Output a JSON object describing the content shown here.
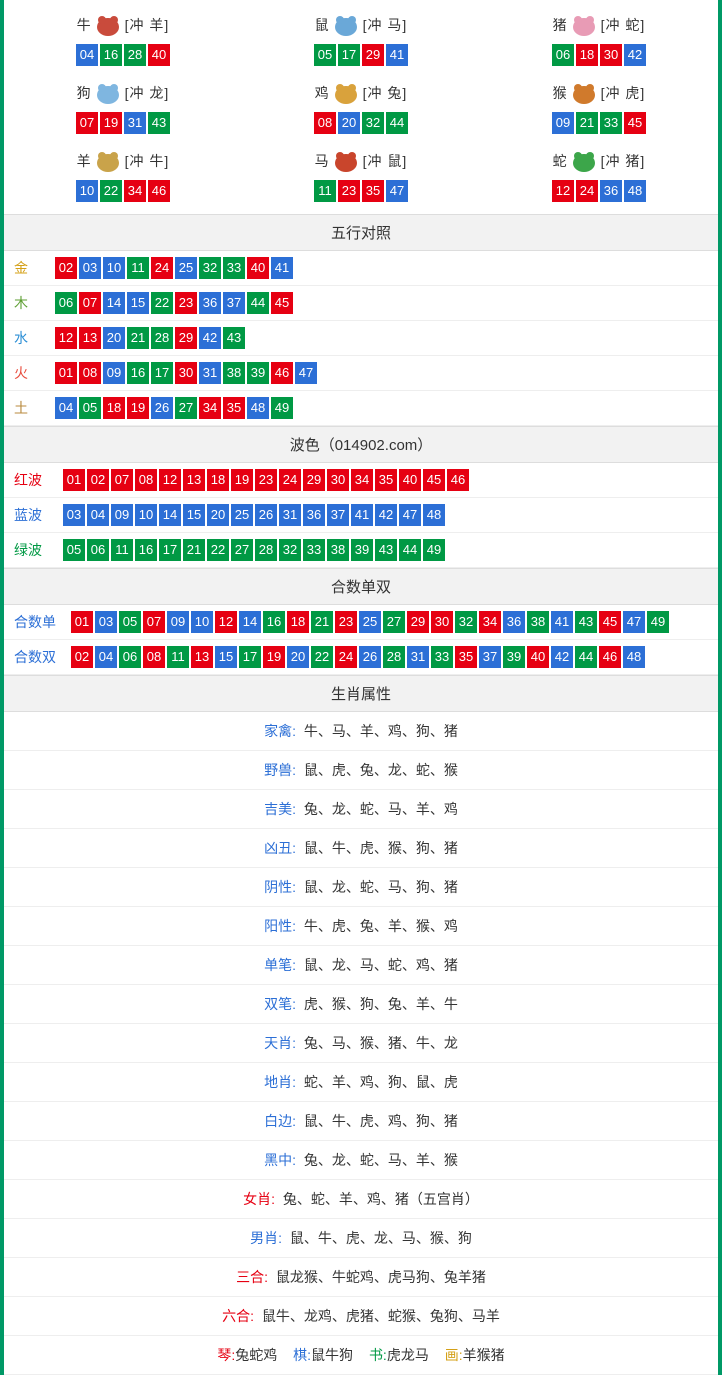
{
  "colors": {
    "red": "#e60012",
    "blue": "#2c6fd6",
    "green": "#009944",
    "gold": "#d4a017",
    "wood": "#5c9e31",
    "water": "#2c8fd6",
    "fire": "#e84c3d",
    "earth": "#b88a3d",
    "redwave": "#e60012",
    "bluewave": "#2c6fd6",
    "greenwave": "#009944",
    "header_bg": "#f2f2f2",
    "border": "#009966"
  },
  "ball_colors": {
    "01": "red",
    "02": "red",
    "03": "blue",
    "04": "blue",
    "05": "green",
    "06": "green",
    "07": "red",
    "08": "red",
    "09": "blue",
    "10": "blue",
    "11": "green",
    "12": "red",
    "13": "red",
    "14": "blue",
    "15": "blue",
    "16": "green",
    "17": "green",
    "18": "red",
    "19": "red",
    "20": "blue",
    "21": "green",
    "22": "green",
    "23": "red",
    "24": "red",
    "25": "blue",
    "26": "blue",
    "27": "green",
    "28": "green",
    "29": "red",
    "30": "red",
    "31": "blue",
    "32": "green",
    "33": "green",
    "34": "red",
    "35": "red",
    "36": "blue",
    "37": "blue",
    "38": "green",
    "39": "green",
    "40": "red",
    "41": "blue",
    "42": "blue",
    "43": "green",
    "44": "green",
    "45": "red",
    "46": "red",
    "47": "blue",
    "48": "blue",
    "49": "green"
  },
  "zodiac": [
    {
      "name": "牛",
      "conflict": "[冲 羊]",
      "icon_color": "#c94b3c",
      "nums": [
        "04",
        "16",
        "28",
        "40"
      ]
    },
    {
      "name": "鼠",
      "conflict": "[冲 马]",
      "icon_color": "#6aa8d8",
      "nums": [
        "05",
        "17",
        "29",
        "41"
      ]
    },
    {
      "name": "猪",
      "conflict": "[冲 蛇]",
      "icon_color": "#e89bb5",
      "nums": [
        "06",
        "18",
        "30",
        "42"
      ]
    },
    {
      "name": "狗",
      "conflict": "[冲 龙]",
      "icon_color": "#7fb6e0",
      "nums": [
        "07",
        "19",
        "31",
        "43"
      ]
    },
    {
      "name": "鸡",
      "conflict": "[冲 兔]",
      "icon_color": "#d9a23c",
      "nums": [
        "08",
        "20",
        "32",
        "44"
      ]
    },
    {
      "name": "猴",
      "conflict": "[冲 虎]",
      "icon_color": "#d07a2c",
      "nums": [
        "09",
        "21",
        "33",
        "45"
      ]
    },
    {
      "name": "羊",
      "conflict": "[冲 牛]",
      "icon_color": "#c9a34a",
      "nums": [
        "10",
        "22",
        "34",
        "46"
      ]
    },
    {
      "name": "马",
      "conflict": "[冲 鼠]",
      "icon_color": "#c9452c",
      "nums": [
        "11",
        "23",
        "35",
        "47"
      ]
    },
    {
      "name": "蛇",
      "conflict": "[冲 猪]",
      "icon_color": "#3ca64a",
      "nums": [
        "12",
        "24",
        "36",
        "48"
      ]
    }
  ],
  "wuxing": {
    "title": "五行对照",
    "rows": [
      {
        "label": "金",
        "label_color": "gold",
        "nums": [
          "02",
          "03",
          "10",
          "11",
          "24",
          "25",
          "32",
          "33",
          "40",
          "41"
        ]
      },
      {
        "label": "木",
        "label_color": "wood",
        "nums": [
          "06",
          "07",
          "14",
          "15",
          "22",
          "23",
          "36",
          "37",
          "44",
          "45"
        ]
      },
      {
        "label": "水",
        "label_color": "water",
        "nums": [
          "12",
          "13",
          "20",
          "21",
          "28",
          "29",
          "42",
          "43"
        ]
      },
      {
        "label": "火",
        "label_color": "fire",
        "nums": [
          "01",
          "08",
          "09",
          "16",
          "17",
          "30",
          "31",
          "38",
          "39",
          "46",
          "47"
        ]
      },
      {
        "label": "土",
        "label_color": "earth",
        "nums": [
          "04",
          "05",
          "18",
          "19",
          "26",
          "27",
          "34",
          "35",
          "48",
          "49"
        ]
      }
    ]
  },
  "bose": {
    "title": "波色（014902.com）",
    "rows": [
      {
        "label": "红波",
        "label_color": "redwave",
        "nums": [
          "01",
          "02",
          "07",
          "08",
          "12",
          "13",
          "18",
          "19",
          "23",
          "24",
          "29",
          "30",
          "34",
          "35",
          "40",
          "45",
          "46"
        ]
      },
      {
        "label": "蓝波",
        "label_color": "bluewave",
        "nums": [
          "03",
          "04",
          "09",
          "10",
          "14",
          "15",
          "20",
          "25",
          "26",
          "31",
          "36",
          "37",
          "41",
          "42",
          "47",
          "48"
        ]
      },
      {
        "label": "绿波",
        "label_color": "greenwave",
        "nums": [
          "05",
          "06",
          "11",
          "16",
          "17",
          "21",
          "22",
          "27",
          "28",
          "32",
          "33",
          "38",
          "39",
          "43",
          "44",
          "49"
        ]
      }
    ]
  },
  "heshu": {
    "title": "合数单双",
    "rows": [
      {
        "label": "合数单",
        "label_color": "bluewave",
        "nums": [
          "01",
          "03",
          "05",
          "07",
          "09",
          "10",
          "12",
          "14",
          "16",
          "18",
          "21",
          "23",
          "25",
          "27",
          "29",
          "30",
          "32",
          "34",
          "36",
          "38",
          "41",
          "43",
          "45",
          "47",
          "49"
        ]
      },
      {
        "label": "合数双",
        "label_color": "bluewave",
        "nums": [
          "02",
          "04",
          "06",
          "08",
          "11",
          "13",
          "15",
          "17",
          "19",
          "20",
          "22",
          "24",
          "26",
          "28",
          "31",
          "33",
          "35",
          "37",
          "39",
          "40",
          "42",
          "44",
          "46",
          "48"
        ]
      }
    ]
  },
  "attributes": {
    "title": "生肖属性",
    "rows": [
      {
        "label": "家禽:",
        "label_color": "#2c6fd6",
        "text": "牛、马、羊、鸡、狗、猪"
      },
      {
        "label": "野兽:",
        "label_color": "#2c6fd6",
        "text": "鼠、虎、兔、龙、蛇、猴"
      },
      {
        "label": "吉美:",
        "label_color": "#2c6fd6",
        "text": "兔、龙、蛇、马、羊、鸡"
      },
      {
        "label": "凶丑:",
        "label_color": "#2c6fd6",
        "text": "鼠、牛、虎、猴、狗、猪"
      },
      {
        "label": "阴性:",
        "label_color": "#2c6fd6",
        "text": "鼠、龙、蛇、马、狗、猪"
      },
      {
        "label": "阳性:",
        "label_color": "#2c6fd6",
        "text": "牛、虎、兔、羊、猴、鸡"
      },
      {
        "label": "单笔:",
        "label_color": "#2c6fd6",
        "text": "鼠、龙、马、蛇、鸡、猪"
      },
      {
        "label": "双笔:",
        "label_color": "#2c6fd6",
        "text": "虎、猴、狗、兔、羊、牛"
      },
      {
        "label": "天肖:",
        "label_color": "#2c6fd6",
        "text": "兔、马、猴、猪、牛、龙"
      },
      {
        "label": "地肖:",
        "label_color": "#2c6fd6",
        "text": "蛇、羊、鸡、狗、鼠、虎"
      },
      {
        "label": "白边:",
        "label_color": "#2c6fd6",
        "text": "鼠、牛、虎、鸡、狗、猪"
      },
      {
        "label": "黑中:",
        "label_color": "#2c6fd6",
        "text": "兔、龙、蛇、马、羊、猴"
      },
      {
        "label": "女肖:",
        "label_color": "#e60012",
        "text": "兔、蛇、羊、鸡、猪（五宫肖）"
      },
      {
        "label": "男肖:",
        "label_color": "#2c6fd6",
        "text": "鼠、牛、虎、龙、马、猴、狗"
      },
      {
        "label": "三合:",
        "label_color": "#e60012",
        "text": "鼠龙猴、牛蛇鸡、虎马狗、兔羊猪"
      },
      {
        "label": "六合:",
        "label_color": "#e60012",
        "text": "鼠牛、龙鸡、虎猪、蛇猴、兔狗、马羊"
      }
    ],
    "multi": [
      {
        "k": "琴:",
        "kc": "#e60012",
        "v": "兔蛇鸡"
      },
      {
        "k": "棋:",
        "kc": "#2c6fd6",
        "v": "鼠牛狗"
      },
      {
        "k": "书:",
        "kc": "#009944",
        "v": "虎龙马"
      },
      {
        "k": "画:",
        "kc": "#d4a017",
        "v": "羊猴猪"
      }
    ]
  }
}
